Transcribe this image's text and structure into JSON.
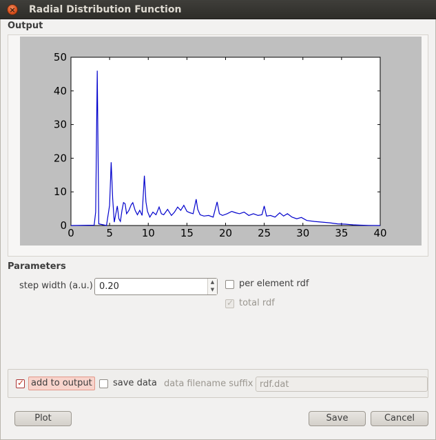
{
  "window": {
    "title": "Radial Distribution Function"
  },
  "output": {
    "label": "Output"
  },
  "chart_data": {
    "type": "line",
    "xlim": [
      0,
      40
    ],
    "ylim": [
      0,
      50
    ],
    "xticks": [
      "0",
      "5",
      "10",
      "15",
      "20",
      "25",
      "30",
      "35",
      "40"
    ],
    "yticks": [
      "0",
      "10",
      "20",
      "30",
      "40",
      "50"
    ],
    "grid": false,
    "series": [
      {
        "color": "#0000cc",
        "x": [
          0,
          3.0,
          3.2,
          3.4,
          3.6,
          4.6,
          5.0,
          5.2,
          5.4,
          5.6,
          6.0,
          6.2,
          6.4,
          6.6,
          6.8,
          7.0,
          7.2,
          7.5,
          7.8,
          8.0,
          8.3,
          8.6,
          8.9,
          9.2,
          9.5,
          9.7,
          9.9,
          10.2,
          10.6,
          11.0,
          11.4,
          11.7,
          12.0,
          12.5,
          13.0,
          13.4,
          13.8,
          14.2,
          14.6,
          15.0,
          15.4,
          15.8,
          16.2,
          16.4,
          16.7,
          17.2,
          17.8,
          18.4,
          18.9,
          19.2,
          19.6,
          20.2,
          20.8,
          21.3,
          21.8,
          22.4,
          23.0,
          23.6,
          24.2,
          24.7,
          25.0,
          25.3,
          25.8,
          26.4,
          27.0,
          27.5,
          28.0,
          28.6,
          29.2,
          29.8,
          30.5,
          31.5,
          32.5,
          33.5,
          34.5,
          35.5,
          36.5,
          37.5,
          38.5,
          40
        ],
        "y": [
          0,
          0.1,
          4,
          46,
          0.5,
          0,
          6,
          18.8,
          8,
          1,
          5.8,
          2,
          1.2,
          4.5,
          6.8,
          6.5,
          3.5,
          4.5,
          6.2,
          6.8,
          4.5,
          3.2,
          4.5,
          3.0,
          14.8,
          7.0,
          4.2,
          2.5,
          4.0,
          3.2,
          5.5,
          3.5,
          3.2,
          4.8,
          3.0,
          4.0,
          5.5,
          4.5,
          6.0,
          4.2,
          3.8,
          3.5,
          7.8,
          4.8,
          3.2,
          2.8,
          3.0,
          2.5,
          7.0,
          3.5,
          3.0,
          3.5,
          4.2,
          3.8,
          3.5,
          4.0,
          3.0,
          3.5,
          3.0,
          3.2,
          5.8,
          2.8,
          3.0,
          2.5,
          3.8,
          2.8,
          3.5,
          2.5,
          2.0,
          2.4,
          1.5,
          1.2,
          1.0,
          0.8,
          0.5,
          0.4,
          0.2,
          0.1,
          0.05,
          0
        ]
      }
    ]
  },
  "parameters": {
    "label": "Parameters",
    "step_width_label": "step width (a.u.)",
    "step_width_value": "0.20",
    "per_element_label": "per element rdf",
    "per_element_checked": false,
    "total_rdf_label": "total rdf",
    "total_rdf_checked": true
  },
  "output_options": {
    "add_to_output_label": "add to output",
    "add_to_output_checked": true,
    "save_data_label": "save data",
    "save_data_checked": false,
    "suffix_label": "data filename suffix",
    "suffix_value": "rdf.dat"
  },
  "buttons": {
    "plot": "Plot",
    "save": "Save",
    "cancel": "Cancel"
  },
  "colors": {
    "accent": "#c0321c",
    "plot_line": "#0000cc",
    "plot_bg": "#bfbfbf"
  }
}
